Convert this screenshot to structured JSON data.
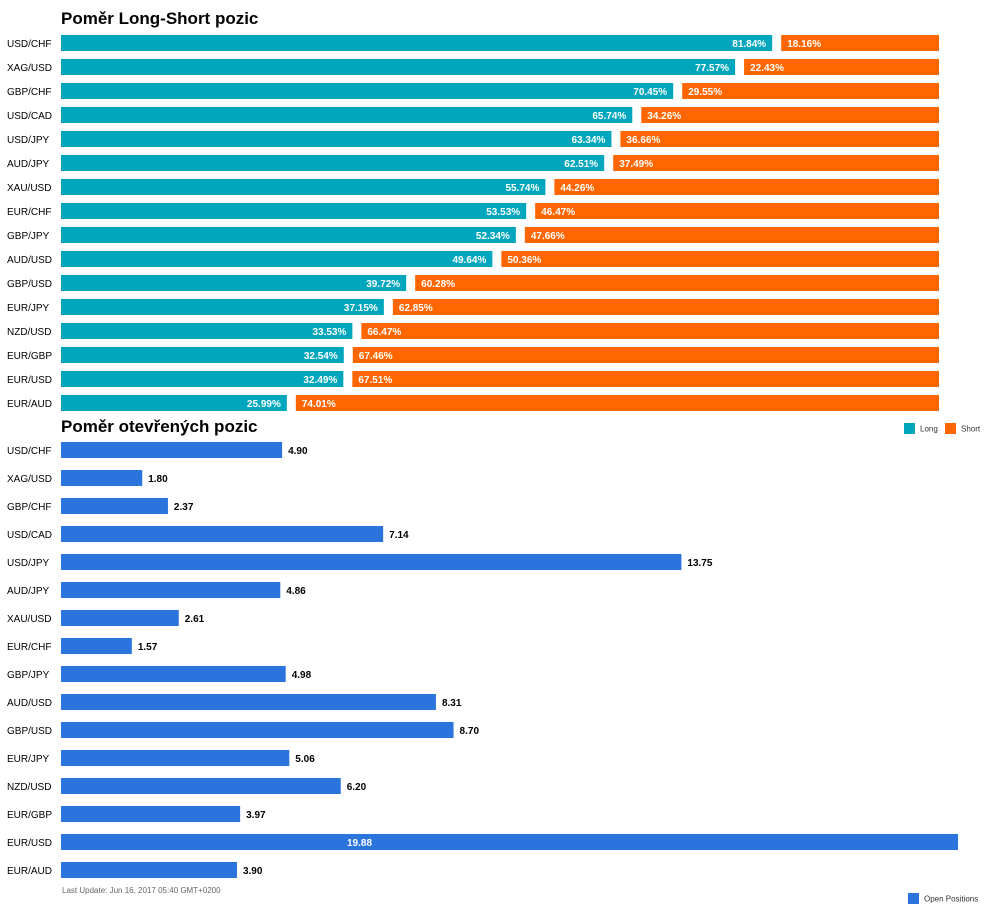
{
  "chart_data": [
    {
      "type": "bar",
      "orientation": "horizontal",
      "stacked": true,
      "title": "Poměr Long-Short pozic",
      "categories": [
        "USD/CHF",
        "XAG/USD",
        "GBP/CHF",
        "USD/CAD",
        "USD/JPY",
        "AUD/JPY",
        "XAU/USD",
        "EUR/CHF",
        "GBP/JPY",
        "AUD/USD",
        "GBP/USD",
        "EUR/JPY",
        "NZD/USD",
        "EUR/GBP",
        "EUR/USD",
        "EUR/AUD"
      ],
      "series": [
        {
          "name": "Long",
          "color": "#00a6bd",
          "values": [
            81.84,
            77.57,
            70.45,
            65.74,
            63.34,
            62.51,
            55.74,
            53.53,
            52.34,
            49.64,
            39.72,
            37.15,
            33.53,
            32.54,
            32.49,
            25.99
          ],
          "labels": [
            "81.84%",
            "77.57%",
            "70.45%",
            "65.74%",
            "63.34%",
            "62.51%",
            "55.74%",
            "53.53%",
            "52.34%",
            "49.64%",
            "39.72%",
            "37.15%",
            "33.53%",
            "32.54%",
            "32.49%",
            "25.99%"
          ]
        },
        {
          "name": "Short",
          "color": "#ff6600",
          "values": [
            18.16,
            22.43,
            29.55,
            34.26,
            36.66,
            37.49,
            44.26,
            46.47,
            47.66,
            50.36,
            60.28,
            62.85,
            66.47,
            67.46,
            67.51,
            74.01
          ],
          "labels": [
            "18.16%",
            "22.43%",
            "29.55%",
            "34.26%",
            "36.66%",
            "37.49%",
            "44.26%",
            "46.47%",
            "47.66%",
            "50.36%",
            "60.28%",
            "62.85%",
            "66.47%",
            "67.46%",
            "67.51%",
            "74.01%"
          ]
        }
      ],
      "xlim": [
        0,
        100
      ],
      "legend": "top-right"
    },
    {
      "type": "bar",
      "orientation": "horizontal",
      "title": "Poměr otevřených pozic",
      "categories": [
        "USD/CHF",
        "XAG/USD",
        "GBP/CHF",
        "USD/CAD",
        "USD/JPY",
        "AUD/JPY",
        "XAU/USD",
        "EUR/CHF",
        "GBP/JPY",
        "AUD/USD",
        "GBP/USD",
        "EUR/JPY",
        "NZD/USD",
        "EUR/GBP",
        "EUR/USD",
        "EUR/AUD"
      ],
      "series": [
        {
          "name": "Open Positions",
          "color": "#2b74de",
          "values": [
            4.9,
            1.8,
            2.37,
            7.14,
            13.75,
            4.86,
            2.61,
            1.57,
            4.98,
            8.31,
            8.7,
            5.06,
            6.2,
            3.97,
            19.88,
            3.9
          ],
          "labels": [
            "4.90",
            "1.80",
            "2.37",
            "7.14",
            "13.75",
            "4.86",
            "2.61",
            "1.57",
            "4.98",
            "8.31",
            "8.70",
            "5.06",
            "6.20",
            "3.97",
            "19.88",
            "3.90"
          ]
        }
      ],
      "xlim": [
        0,
        19.88
      ],
      "legend": "bottom-right"
    }
  ],
  "footer": {
    "last_update": "Last Update: Jun 16, 2017 05:40 GMT+0200"
  }
}
